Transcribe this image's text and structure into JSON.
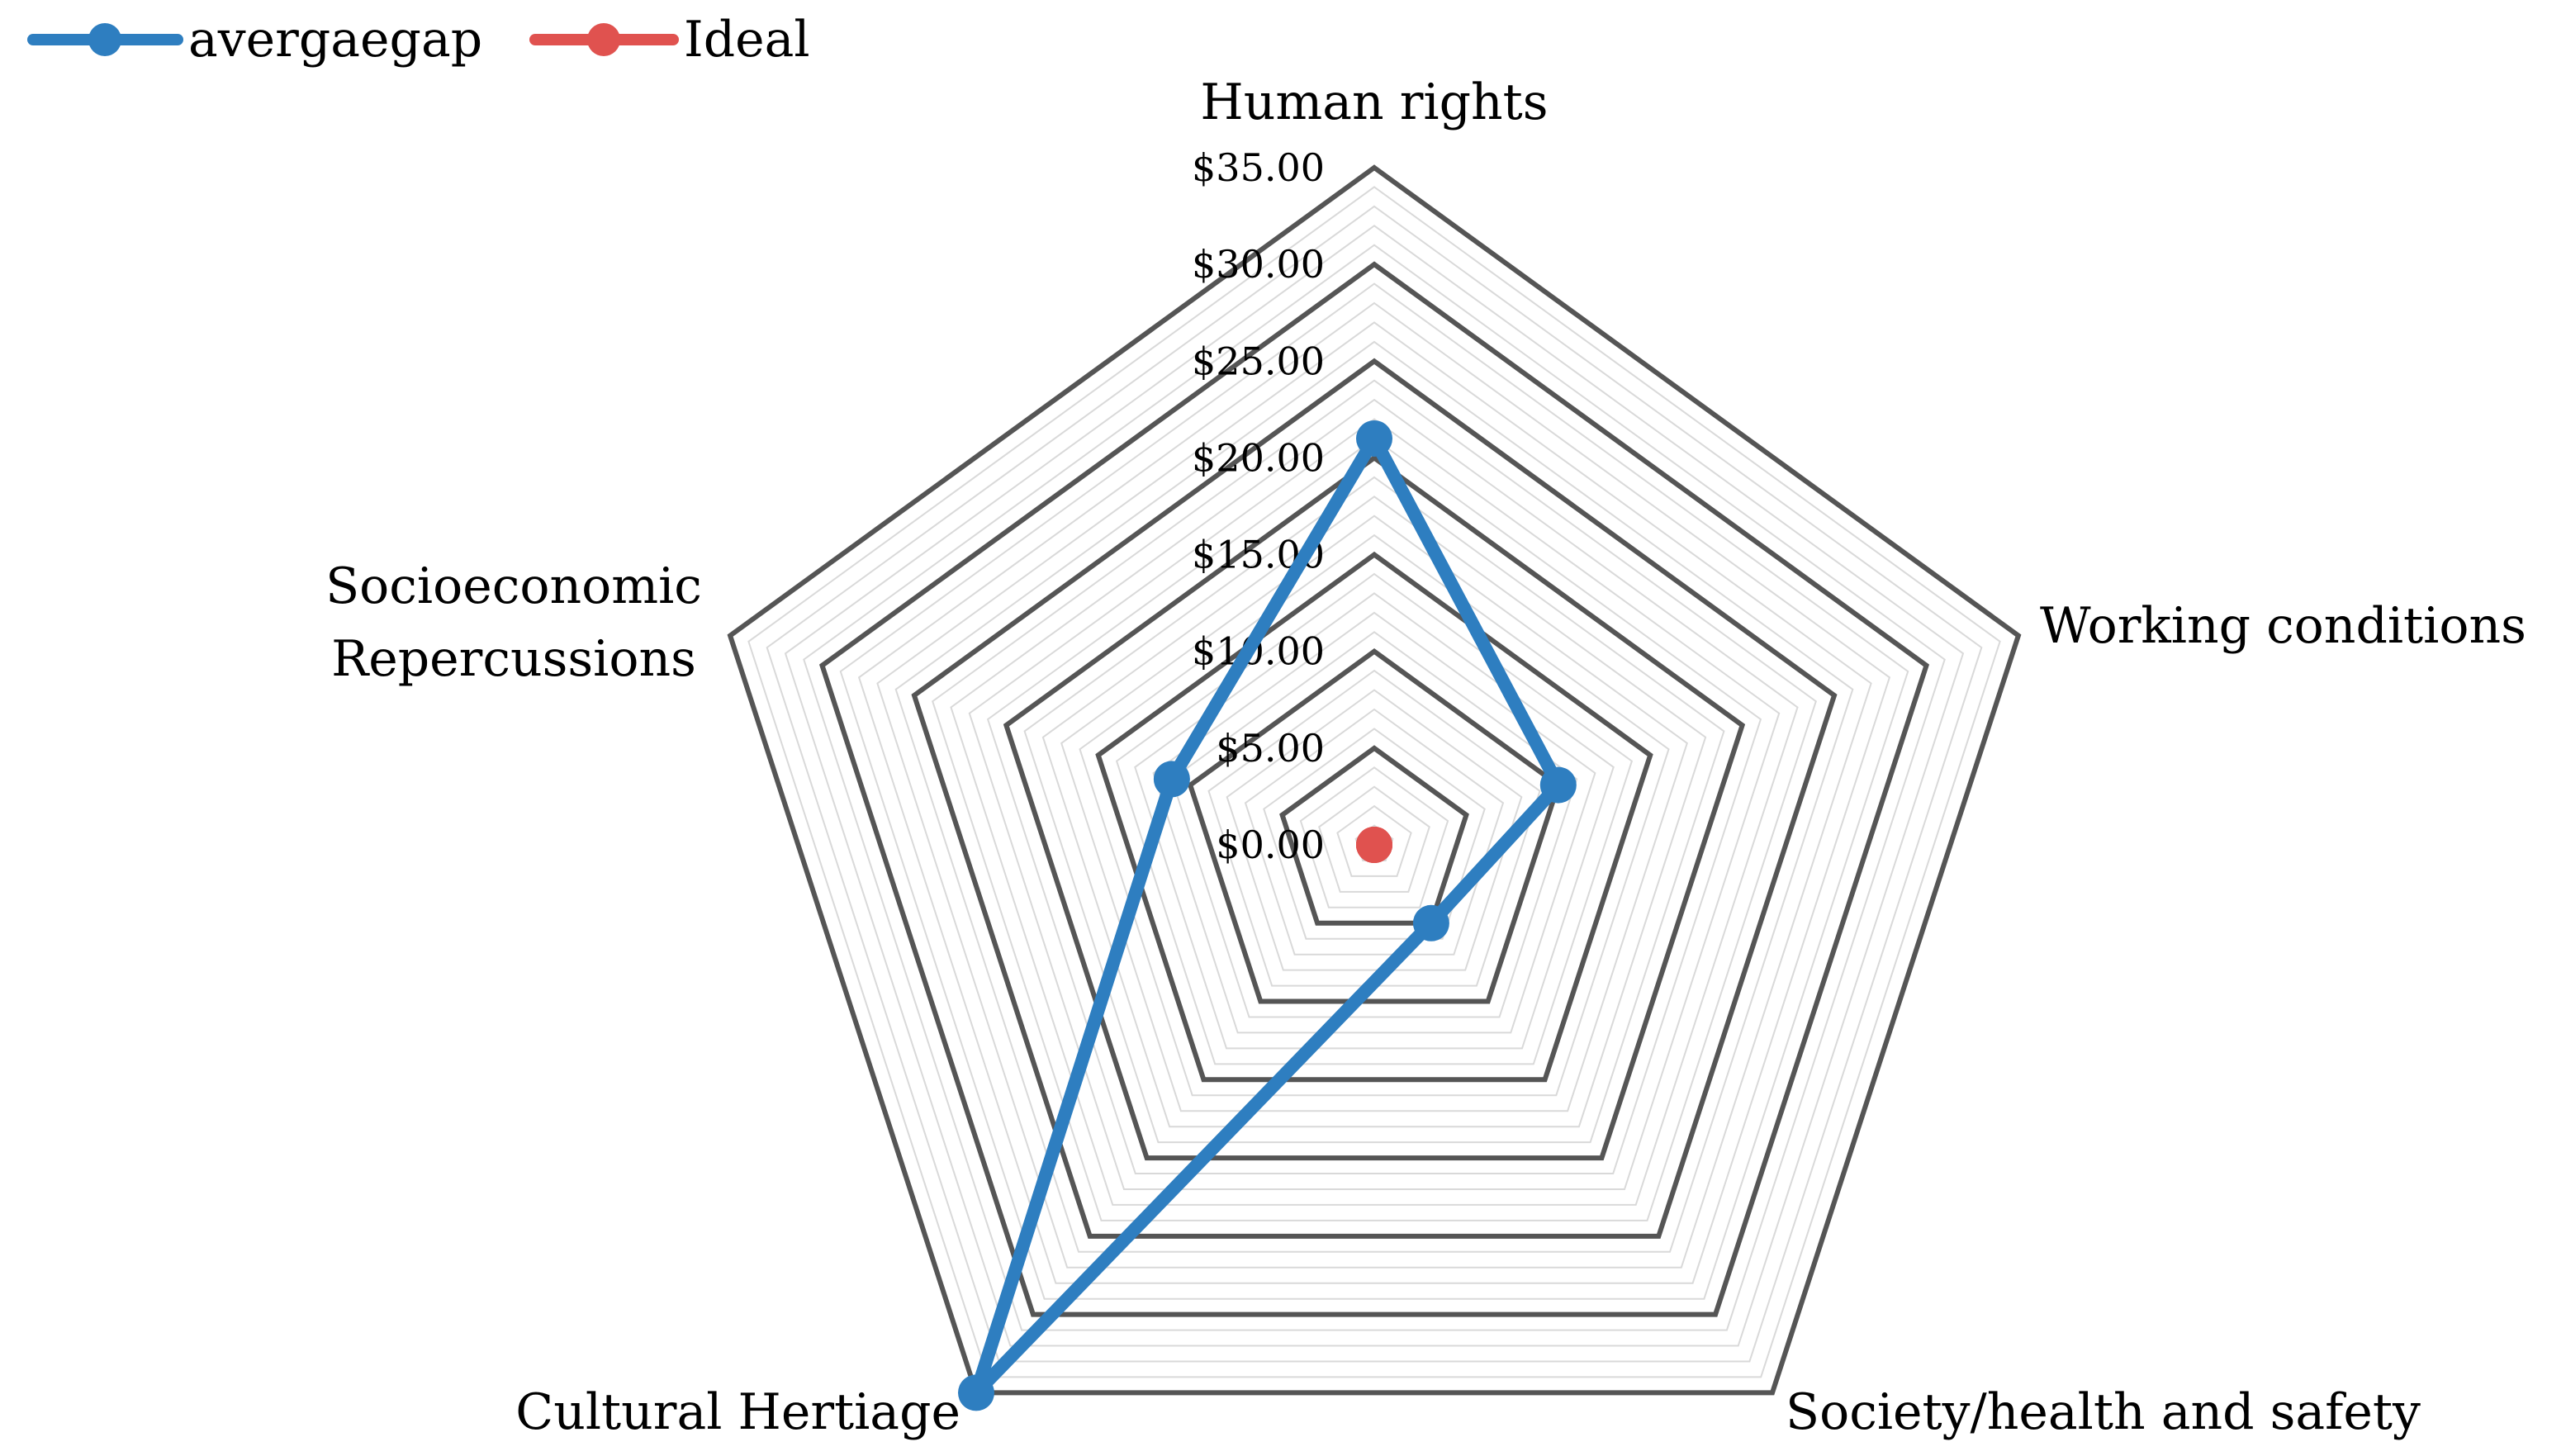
{
  "chart_data": {
    "type": "radar",
    "axes": [
      "Human rights",
      "Working conditions",
      "Society/health and safety",
      "Cultural Hertiage",
      "Socioeconomic Repercussions"
    ],
    "axis_label_lines": [
      [
        "Human rights"
      ],
      [
        "Working conditions"
      ],
      [
        "Society/health and safety"
      ],
      [
        "Cultural Hertiage"
      ],
      [
        "Socioeconomic",
        "Repercussions"
      ]
    ],
    "radial_ticks": [
      "$0.00",
      "$5.00",
      "$10.00",
      "$15.00",
      "$20.00",
      "$25.00",
      "$30.00",
      "$35.00"
    ],
    "rmin": 0,
    "rmax": 35,
    "major_step": 5,
    "minor_step": 1,
    "series": [
      {
        "name": "avergaegap",
        "color": "#2E7EC0",
        "values": [
          21,
          10,
          5,
          35,
          11
        ]
      },
      {
        "name": "Ideal",
        "color": "#E0524F",
        "values": [
          0,
          0,
          0,
          0,
          0
        ]
      }
    ],
    "legend_position": "top-left",
    "grid": true,
    "colors": {
      "major_grid": "#555555",
      "minor_grid": "#d9d9d9"
    }
  }
}
